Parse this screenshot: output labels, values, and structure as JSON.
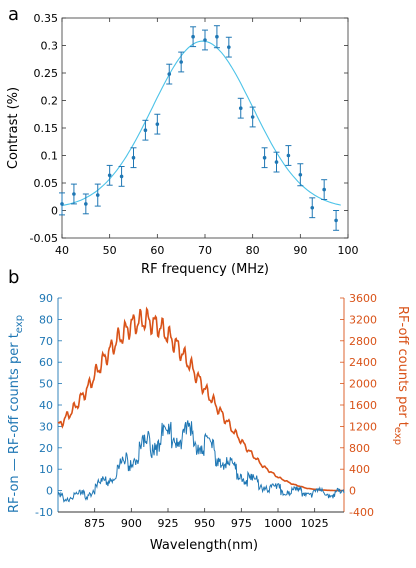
{
  "chart_data": [
    {
      "panel_label": "a",
      "type": "scatter",
      "xlabel": "RF frequency (MHz)",
      "ylabel": "Contrast (%)",
      "xlim": [
        40,
        100
      ],
      "ylim": [
        -0.05,
        0.35
      ],
      "xticks": [
        "40",
        "50",
        "60",
        "70",
        "80",
        "90",
        "100"
      ],
      "yticks": [
        "-0.05",
        "0",
        "0.05",
        "0.1",
        "0.15",
        "0.2",
        "0.25",
        "0.3",
        "0.35"
      ],
      "grid": false,
      "colors": {
        "points": "#1f77b4",
        "fit": "#4cc3e8"
      },
      "series": [
        {
          "kind": "points_with_error_bars",
          "points": [
            {
              "x": 40,
              "y": 0.012,
              "err": 0.02
            },
            {
              "x": 42.5,
              "y": 0.03,
              "err": 0.018
            },
            {
              "x": 45,
              "y": 0.012,
              "err": 0.018
            },
            {
              "x": 47.5,
              "y": 0.028,
              "err": 0.02
            },
            {
              "x": 50,
              "y": 0.064,
              "err": 0.018
            },
            {
              "x": 52.5,
              "y": 0.062,
              "err": 0.018
            },
            {
              "x": 55,
              "y": 0.096,
              "err": 0.018
            },
            {
              "x": 57.5,
              "y": 0.146,
              "err": 0.018
            },
            {
              "x": 60,
              "y": 0.157,
              "err": 0.018
            },
            {
              "x": 62.5,
              "y": 0.248,
              "err": 0.018
            },
            {
              "x": 65,
              "y": 0.27,
              "err": 0.018
            },
            {
              "x": 67.5,
              "y": 0.316,
              "err": 0.018
            },
            {
              "x": 70,
              "y": 0.31,
              "err": 0.018
            },
            {
              "x": 72.5,
              "y": 0.316,
              "err": 0.02
            },
            {
              "x": 75,
              "y": 0.297,
              "err": 0.018
            },
            {
              "x": 77.5,
              "y": 0.186,
              "err": 0.018
            },
            {
              "x": 80,
              "y": 0.17,
              "err": 0.018
            },
            {
              "x": 82.5,
              "y": 0.096,
              "err": 0.018
            },
            {
              "x": 85,
              "y": 0.088,
              "err": 0.018
            },
            {
              "x": 87.5,
              "y": 0.1,
              "err": 0.018
            },
            {
              "x": 90,
              "y": 0.065,
              "err": 0.02
            },
            {
              "x": 92.5,
              "y": 0.005,
              "err": 0.018
            },
            {
              "x": 95,
              "y": 0.038,
              "err": 0.018
            },
            {
              "x": 97.5,
              "y": -0.018,
              "err": 0.018
            }
          ]
        },
        {
          "kind": "fit_curve",
          "model": "gaussian",
          "center": 69.5,
          "sigma": 10.5,
          "amplitude": 0.305,
          "offset": 0.003
        }
      ]
    },
    {
      "panel_label": "b",
      "type": "line",
      "xlabel": "Wavelength(nm)",
      "ylabel_left": "RF-on — RF-off counts per t",
      "ylabel_left_sub": "exp",
      "ylabel_right": "RF-off counts per t",
      "ylabel_right_sub": "exp",
      "xlim": [
        850,
        1045
      ],
      "ylim_left": [
        -10,
        90
      ],
      "ylim_right": [
        -400,
        3600
      ],
      "xticks": [
        "875",
        "900",
        "925",
        "950",
        "975",
        "1000",
        "1025"
      ],
      "yticks_left": [
        "-10",
        "0",
        "10",
        "20",
        "30",
        "40",
        "50",
        "60",
        "70",
        "80",
        "90"
      ],
      "yticks_right": [
        "-400",
        "0",
        "400",
        "800",
        "1200",
        "1600",
        "2000",
        "2400",
        "2800",
        "3200",
        "3600"
      ],
      "colors": {
        "left": "#1f77b4",
        "right": "#d95319"
      },
      "series": [
        {
          "axis": "right",
          "color": "#d95319",
          "x": [
            850,
            860,
            870,
            880,
            890,
            900,
            910,
            920,
            930,
            940,
            950,
            960,
            970,
            980,
            990,
            1000,
            1010,
            1020,
            1030,
            1040,
            1045
          ],
          "y": [
            1200,
            1500,
            1900,
            2400,
            2800,
            3100,
            3200,
            3050,
            2750,
            2350,
            1900,
            1500,
            1100,
            750,
            450,
            250,
            120,
            40,
            10,
            0,
            0
          ]
        },
        {
          "axis": "left",
          "color": "#1f77b4",
          "x": [
            850,
            860,
            870,
            880,
            890,
            900,
            910,
            920,
            930,
            940,
            950,
            960,
            970,
            980,
            990,
            1000,
            1010,
            1020,
            1030,
            1040,
            1045
          ],
          "y": [
            -2,
            -1.5,
            -0.5,
            5,
            11,
            18,
            24,
            28,
            30,
            29,
            25,
            18,
            12,
            7,
            4,
            2,
            1,
            0.5,
            0,
            0,
            0
          ]
        }
      ]
    }
  ]
}
